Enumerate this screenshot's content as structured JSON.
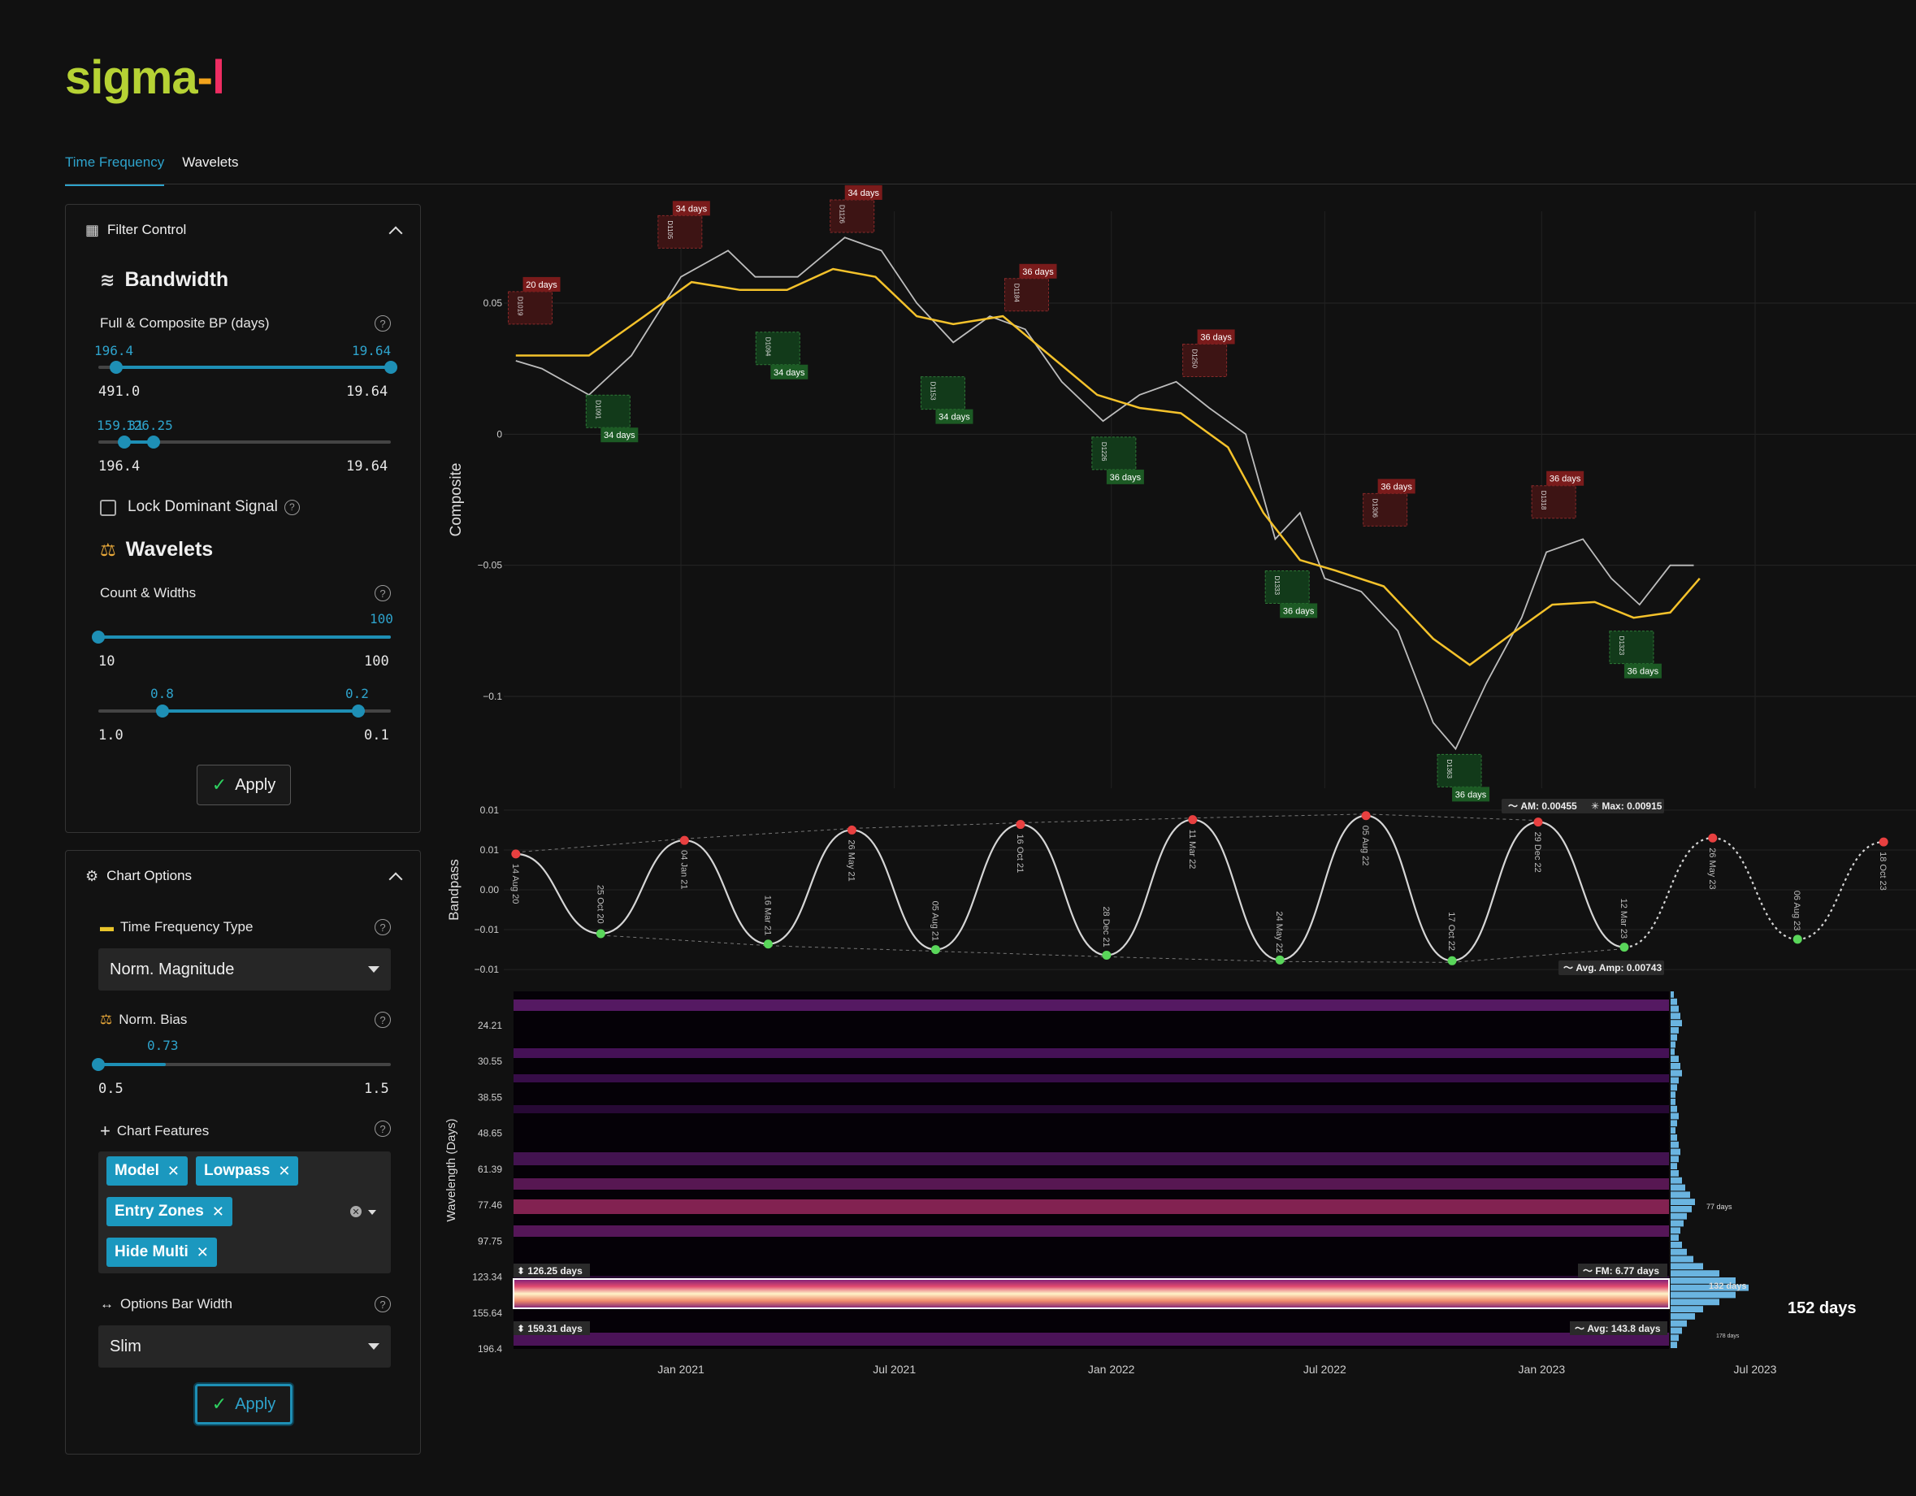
{
  "app": {
    "logo_1": "sigma",
    "logo_2": "-",
    "logo_3": "l",
    "tabs": [
      {
        "label": "Time Frequency",
        "active": true
      },
      {
        "label": "Wavelets",
        "active": false
      }
    ]
  },
  "colors": {
    "accent": "#1e8fb5",
    "price": "#bdbdbd",
    "lowpass": "#f4c22b",
    "peak": "#e84040",
    "trough": "#59d65a"
  },
  "filter_control": {
    "title": "Filter Control",
    "bandwidth": {
      "title": "Bandwidth",
      "label": "Full & Composite BP (days)",
      "range1": {
        "low_val": "196.4",
        "high_val": "19.64",
        "min": "491.0",
        "max": "19.64",
        "low_frac": 0.06,
        "high_frac": 1.0
      },
      "range2": {
        "low_val": "159.31",
        "high_val": "126.25",
        "min": "196.4",
        "max": "19.64",
        "low_frac": 0.09,
        "high_frac": 0.19
      }
    },
    "lock_dominant": {
      "label": "Lock Dominant Signal",
      "checked": false
    },
    "wavelets": {
      "title": "Wavelets",
      "label": "Count & Widths",
      "count": {
        "value": "100",
        "min": "10",
        "max": "100",
        "frac": 1.0
      },
      "widths": {
        "low_val": "0.8",
        "high_val": "0.2",
        "min": "1.0",
        "max": "0.1",
        "low_frac": 0.22,
        "high_frac": 0.89
      }
    },
    "apply_label": "Apply"
  },
  "chart_options": {
    "title": "Chart Options",
    "tf_type": {
      "label": "Time Frequency Type",
      "value": "Norm. Magnitude"
    },
    "norm_bias": {
      "label": "Norm. Bias",
      "value": "0.73",
      "min": "0.5",
      "max": "1.5",
      "frac": 0.23
    },
    "features": {
      "label": "Chart Features",
      "tags": [
        "Model",
        "Lowpass",
        "Entry Zones",
        "Hide Multi"
      ]
    },
    "bar_width": {
      "label": "Options Bar Width",
      "value": "Slim"
    },
    "apply_label": "Apply"
  },
  "chart_data": [
    {
      "type": "line",
      "ylabel": "Composite",
      "y_ticks": [
        "0.05",
        "0",
        "−0.05",
        "−0.1"
      ],
      "y_tick_values": [
        0.05,
        0,
        -0.05,
        -0.1
      ],
      "ylim": [
        -0.135,
        0.085
      ],
      "x_range": [
        "2020-08-14",
        "2023-10-20"
      ],
      "series": [
        {
          "role": "composite",
          "x": [
            "2020-08-14",
            "2020-09-05",
            "2020-10-15",
            "2020-11-20",
            "2021-01-01",
            "2021-02-10",
            "2021-03-05",
            "2021-04-10",
            "2021-05-20",
            "2021-06-20",
            "2021-07-20",
            "2021-08-20",
            "2021-09-20",
            "2021-10-20",
            "2021-11-20",
            "2021-12-25",
            "2022-01-25",
            "2022-02-25",
            "2022-03-25",
            "2022-04-25",
            "2022-05-20",
            "2022-06-10",
            "2022-07-01",
            "2022-08-01",
            "2022-09-01",
            "2022-10-01",
            "2022-10-20",
            "2022-11-15",
            "2022-12-15",
            "2023-01-05",
            "2023-02-05",
            "2023-03-01",
            "2023-03-25",
            "2023-04-20",
            "2023-05-10"
          ],
          "y": [
            0.028,
            0.025,
            0.015,
            0.03,
            0.06,
            0.07,
            0.06,
            0.06,
            0.075,
            0.07,
            0.05,
            0.035,
            0.045,
            0.04,
            0.02,
            0.005,
            0.015,
            0.02,
            0.01,
            0.0,
            -0.04,
            -0.03,
            -0.055,
            -0.06,
            -0.075,
            -0.11,
            -0.12,
            -0.095,
            -0.07,
            -0.045,
            -0.04,
            -0.055,
            -0.065,
            -0.05,
            -0.05
          ]
        },
        {
          "role": "lowpass",
          "x": [
            "2020-08-14",
            "2020-10-15",
            "2020-12-01",
            "2021-01-10",
            "2021-02-20",
            "2021-04-01",
            "2021-05-10",
            "2021-06-15",
            "2021-07-20",
            "2021-08-20",
            "2021-10-01",
            "2021-11-10",
            "2021-12-20",
            "2022-01-25",
            "2022-03-01",
            "2022-04-10",
            "2022-05-10",
            "2022-06-10",
            "2022-07-10",
            "2022-08-20",
            "2022-10-01",
            "2022-11-01",
            "2022-12-10",
            "2023-01-10",
            "2023-02-15",
            "2023-03-20",
            "2023-04-20",
            "2023-05-15"
          ],
          "y": [
            0.03,
            0.03,
            0.045,
            0.058,
            0.055,
            0.055,
            0.063,
            0.06,
            0.045,
            0.042,
            0.045,
            0.03,
            0.015,
            0.01,
            0.008,
            -0.005,
            -0.03,
            -0.048,
            -0.052,
            -0.058,
            -0.078,
            -0.088,
            -0.075,
            -0.065,
            -0.064,
            -0.07,
            -0.068,
            -0.055
          ]
        }
      ],
      "annotations": {
        "peaks": [
          {
            "x": "2020-08-20",
            "y": 0.037,
            "id": "D1019",
            "label": "20 days"
          },
          {
            "x": "2020-12-25",
            "y": 0.066,
            "id": "D1105",
            "label": "34 days"
          },
          {
            "x": "2021-05-20",
            "y": 0.072,
            "id": "D1126",
            "label": "34 days"
          },
          {
            "x": "2021-10-15",
            "y": 0.042,
            "id": "D1184",
            "label": "36 days"
          },
          {
            "x": "2022-03-15",
            "y": 0.017,
            "id": "D1250",
            "label": "36 days"
          },
          {
            "x": "2022-08-15",
            "y": -0.04,
            "id": "D1306",
            "label": "36 days"
          },
          {
            "x": "2023-01-05",
            "y": -0.037,
            "id": "D1318",
            "label": "36 days"
          }
        ],
        "troughs": [
          {
            "x": "2020-10-25",
            "y": 0.018,
            "id": "D1091",
            "label": "34 days"
          },
          {
            "x": "2021-03-18",
            "y": 0.042,
            "id": "D1094",
            "label": "34 days"
          },
          {
            "x": "2021-08-05",
            "y": 0.025,
            "id": "D1153",
            "label": "34 days"
          },
          {
            "x": "2021-12-28",
            "y": 0.002,
            "id": "D1226",
            "label": "36 days"
          },
          {
            "x": "2022-05-24",
            "y": -0.049,
            "id": "D1333",
            "label": "36 days"
          },
          {
            "x": "2022-10-17",
            "y": -0.119,
            "id": "D1363",
            "label": "36 days"
          },
          {
            "x": "2023-03-12",
            "y": -0.072,
            "id": "D1323",
            "label": "36 days"
          }
        ]
      }
    },
    {
      "type": "line",
      "ylabel": "Bandpass",
      "y_ticks": [
        "0.01",
        "0.01",
        "0.00",
        "−0.01",
        "−0.01"
      ],
      "y_tick_values": [
        0.01,
        0.005,
        0.0,
        -0.005,
        -0.01
      ],
      "ylim": [
        -0.0105,
        0.0105
      ],
      "extremes": [
        {
          "x": "2020-08-14",
          "y": 0.0045,
          "type": "peak",
          "label": "14 Aug 20"
        },
        {
          "x": "2020-10-25",
          "y": -0.0055,
          "type": "trough",
          "label": "25 Oct 20"
        },
        {
          "x": "2021-01-04",
          "y": 0.0062,
          "type": "peak",
          "label": "04 Jan 21"
        },
        {
          "x": "2021-03-16",
          "y": -0.0068,
          "type": "trough",
          "label": "16 Mar 21"
        },
        {
          "x": "2021-05-26",
          "y": 0.0075,
          "type": "peak",
          "label": "26 May 21"
        },
        {
          "x": "2021-08-05",
          "y": -0.0075,
          "type": "trough",
          "label": "05 Aug 21"
        },
        {
          "x": "2021-10-16",
          "y": 0.0082,
          "type": "peak",
          "label": "16 Oct 21"
        },
        {
          "x": "2021-12-28",
          "y": -0.0082,
          "type": "trough",
          "label": "28 Dec 21"
        },
        {
          "x": "2022-03-11",
          "y": 0.0088,
          "type": "peak",
          "label": "11 Mar 22"
        },
        {
          "x": "2022-05-24",
          "y": -0.0088,
          "type": "trough",
          "label": "24 May 22"
        },
        {
          "x": "2022-08-05",
          "y": 0.0093,
          "type": "peak",
          "label": "05 Aug 22"
        },
        {
          "x": "2022-10-17",
          "y": -0.0089,
          "type": "trough",
          "label": "17 Oct 22"
        },
        {
          "x": "2022-12-29",
          "y": 0.0085,
          "type": "peak",
          "label": "29 Dec 22"
        },
        {
          "x": "2023-03-12",
          "y": -0.0072,
          "type": "trough",
          "label": "12 Mar 23"
        },
        {
          "x": "2023-05-26",
          "y": 0.0065,
          "type": "peak",
          "label": "26 May 23",
          "projected": true
        },
        {
          "x": "2023-08-06",
          "y": -0.0062,
          "type": "trough",
          "label": "06 Aug 23",
          "projected": true
        },
        {
          "x": "2023-10-18",
          "y": 0.006,
          "type": "peak",
          "label": "18 Oct 23",
          "projected": true
        }
      ],
      "labels": {
        "am": "AM: 0.00455",
        "max": "Max: 0.00915",
        "avg_amp": "Avg. Amp: 0.00743"
      }
    },
    {
      "type": "heatmap",
      "ylabel": "Wavelength (Days)",
      "y_ticks": [
        "24.21",
        "30.55",
        "38.55",
        "48.65",
        "61.39",
        "77.46",
        "97.75",
        "123.34",
        "155.64",
        "196.4"
      ],
      "x_ticks": [
        "Jan 2021",
        "Jul 2021",
        "Jan 2022",
        "Jul 2022",
        "Jan 2023",
        "Jul 2023"
      ],
      "x_tick_dates": [
        "2021-01-01",
        "2021-07-01",
        "2022-01-01",
        "2022-07-01",
        "2023-01-01",
        "2023-07-01"
      ],
      "band": {
        "upper_label": "126.25 days",
        "lower_label": "159.31 days",
        "fm_label": "FM: 6.77 days",
        "avg_label": "Avg: 143.8 days"
      },
      "spectrum_peaks": [
        "77 days",
        "132 days",
        "152 days",
        "178 days"
      ],
      "dominant_value": 152
    }
  ]
}
